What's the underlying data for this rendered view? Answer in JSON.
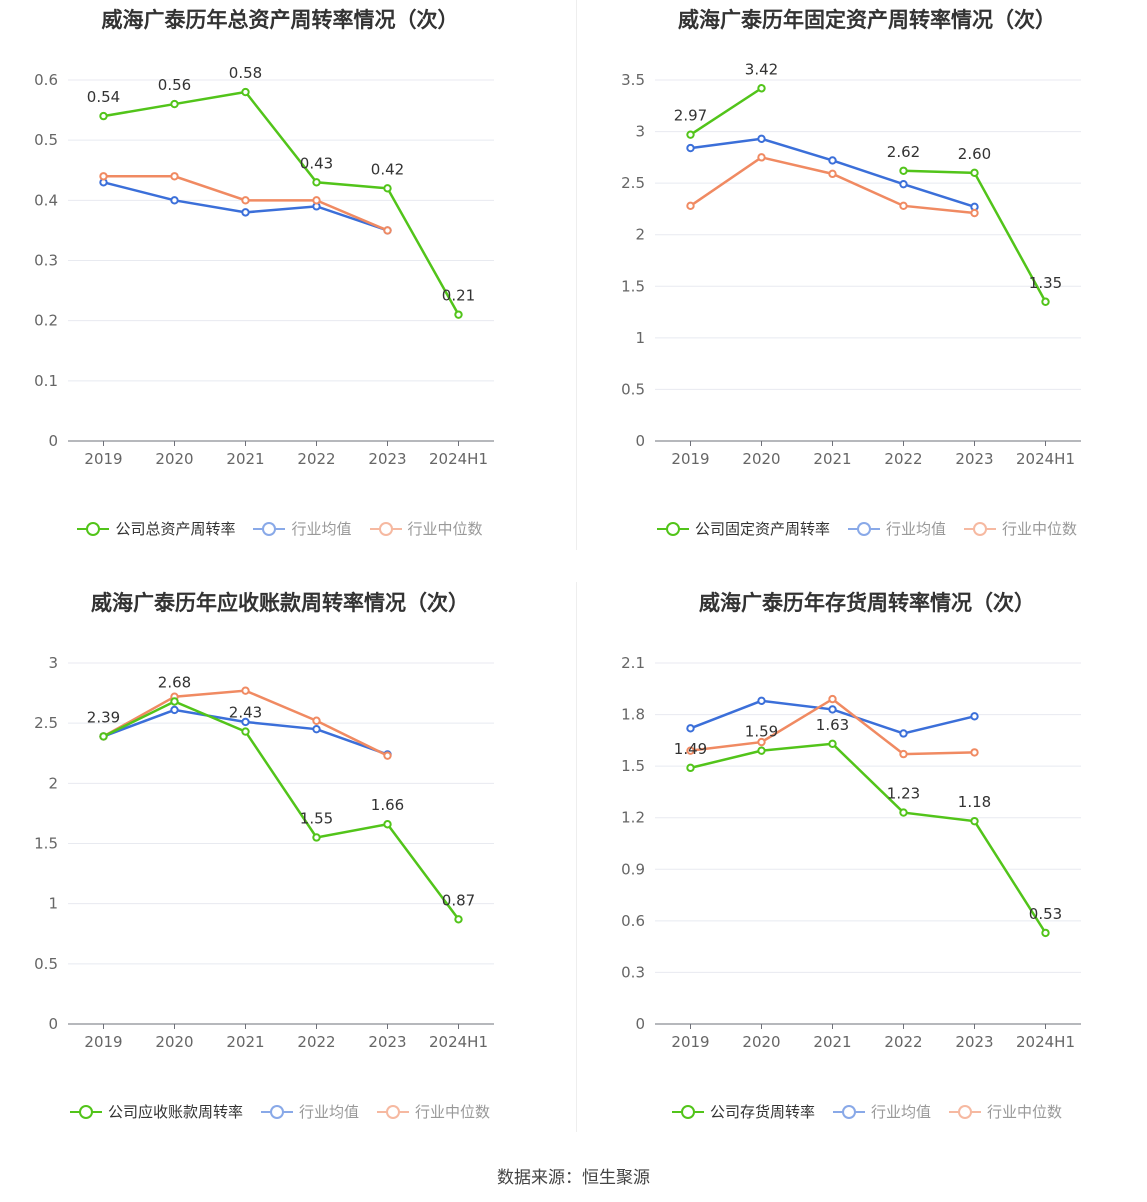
{
  "source_label": "数据来源：恒生聚源",
  "colors": {
    "company": "#52c41a",
    "avg": "#3b6fd9",
    "median": "#f08a62"
  },
  "chart_data": [
    {
      "type": "line",
      "title": "威海广泰历年总资产周转率情况（次）",
      "categories": [
        "2019",
        "2020",
        "2021",
        "2022",
        "2023",
        "2024H1"
      ],
      "yticks": [
        "0",
        "0.1",
        "0.2",
        "0.3",
        "0.4",
        "0.5",
        "0.6"
      ],
      "ylim": [
        0,
        0.6
      ],
      "series": [
        {
          "name": "公司总资产周转率",
          "role": "company",
          "values": [
            0.54,
            0.56,
            0.58,
            0.43,
            0.42,
            0.21
          ],
          "labels": [
            "0.54",
            "0.56",
            "0.58",
            "0.43",
            "0.42",
            "0.21"
          ]
        },
        {
          "name": "行业均值",
          "role": "avg",
          "values": [
            0.43,
            0.4,
            0.38,
            0.39,
            0.35,
            null
          ]
        },
        {
          "name": "行业中位数",
          "role": "median",
          "values": [
            0.44,
            0.44,
            0.4,
            0.4,
            0.35,
            null
          ]
        }
      ]
    },
    {
      "type": "line",
      "title": "威海广泰历年固定资产周转率情况（次）",
      "categories": [
        "2019",
        "2020",
        "2021",
        "2022",
        "2023",
        "2024H1"
      ],
      "yticks": [
        "0",
        "0.5",
        "1",
        "1.5",
        "2",
        "2.5",
        "3",
        "3.5"
      ],
      "ylim": [
        0,
        3.5
      ],
      "series": [
        {
          "name": "公司固定资产周转率",
          "role": "company",
          "values": [
            2.97,
            3.42,
            null,
            2.62,
            2.6,
            1.35
          ],
          "labels": [
            "2.97",
            "3.42",
            "",
            "2.62",
            "2.60",
            "1.35"
          ]
        },
        {
          "name": "行业均值",
          "role": "avg",
          "values": [
            2.84,
            2.93,
            2.72,
            2.49,
            2.27,
            null
          ]
        },
        {
          "name": "行业中位数",
          "role": "median",
          "values": [
            2.28,
            2.75,
            2.59,
            2.28,
            2.21,
            null
          ]
        }
      ]
    },
    {
      "type": "line",
      "title": "威海广泰历年应收账款周转率情况（次）",
      "categories": [
        "2019",
        "2020",
        "2021",
        "2022",
        "2023",
        "2024H1"
      ],
      "yticks": [
        "0",
        "0.5",
        "1",
        "1.5",
        "2",
        "2.5",
        "3"
      ],
      "ylim": [
        0,
        3
      ],
      "series": [
        {
          "name": "公司应收账款周转率",
          "role": "company",
          "values": [
            2.39,
            2.68,
            2.43,
            1.55,
            1.66,
            0.87
          ],
          "labels": [
            "2.39",
            "2.68",
            "2.43",
            "1.55",
            "1.66",
            "0.87"
          ]
        },
        {
          "name": "行业均值",
          "role": "avg",
          "values": [
            2.39,
            2.61,
            2.51,
            2.45,
            2.24,
            null
          ]
        },
        {
          "name": "行业中位数",
          "role": "median",
          "values": [
            2.39,
            2.72,
            2.77,
            2.52,
            2.23,
            null
          ]
        }
      ]
    },
    {
      "type": "line",
      "title": "威海广泰历年存货周转率情况（次）",
      "categories": [
        "2019",
        "2020",
        "2021",
        "2022",
        "2023",
        "2024H1"
      ],
      "yticks": [
        "0",
        "0.3",
        "0.6",
        "0.9",
        "1.2",
        "1.5",
        "1.8",
        "2.1"
      ],
      "ylim": [
        0,
        2.1
      ],
      "series": [
        {
          "name": "公司存货周转率",
          "role": "company",
          "values": [
            1.49,
            1.59,
            1.63,
            1.23,
            1.18,
            0.53
          ],
          "labels": [
            "1.49",
            "1.59",
            "1.63",
            "1.23",
            "1.18",
            "0.53"
          ]
        },
        {
          "name": "行业均值",
          "role": "avg",
          "values": [
            1.72,
            1.88,
            1.83,
            1.69,
            1.79,
            null
          ]
        },
        {
          "name": "行业中位数",
          "role": "median",
          "values": [
            1.59,
            1.64,
            1.89,
            1.57,
            1.58,
            null
          ]
        }
      ]
    }
  ]
}
